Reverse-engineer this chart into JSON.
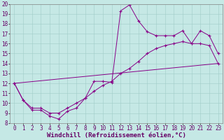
{
  "bg_color": "#c5e8e5",
  "line_color": "#880088",
  "grid_color": "#a0ccc8",
  "xlim": [
    -0.5,
    23.5
  ],
  "ylim": [
    8,
    20
  ],
  "xlabel": "Windchill (Refroidissement éolien,°C)",
  "line1_x": [
    0,
    1,
    2,
    3,
    4,
    5,
    6,
    7,
    8,
    9,
    10,
    11,
    12,
    13,
    14,
    15,
    16,
    17,
    18,
    19,
    20,
    21,
    22,
    23
  ],
  "line1_y": [
    12,
    10.3,
    9.3,
    9.3,
    8.7,
    8.4,
    9.2,
    9.5,
    10.5,
    12.2,
    12.2,
    12.1,
    19.3,
    19.9,
    18.3,
    17.2,
    16.8,
    16.8,
    16.8,
    17.3,
    16.0,
    17.3,
    16.8,
    15.0
  ],
  "line2_x": [
    0,
    1,
    2,
    3,
    4,
    5,
    6,
    7,
    8,
    9,
    10,
    11,
    12,
    13,
    14,
    15,
    16,
    17,
    18,
    19,
    20,
    21,
    22,
    23
  ],
  "line2_y": [
    12,
    10.3,
    9.5,
    9.5,
    9.0,
    9.0,
    9.5,
    10.0,
    10.5,
    11.2,
    11.8,
    12.2,
    13.0,
    13.5,
    14.2,
    15.0,
    15.5,
    15.8,
    16.0,
    16.2,
    16.0,
    16.0,
    15.8,
    14.0
  ],
  "line3_x": [
    0,
    23
  ],
  "line3_y": [
    12,
    14.0
  ],
  "font_size": 5.5,
  "tick_font_size": 5.5,
  "xlabel_fontsize": 6.5
}
